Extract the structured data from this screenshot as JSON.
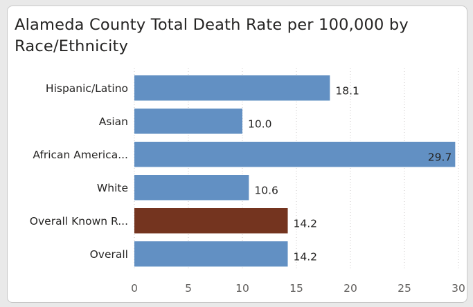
{
  "chart_data": {
    "type": "bar",
    "orientation": "horizontal",
    "title": "Alameda County Total Death Rate per 100,000 by Race/Ethnicity",
    "categories": [
      "Hispanic/Latino",
      "Asian",
      "African America...",
      "White",
      "Overall Known R...",
      "Overall"
    ],
    "values": [
      18.1,
      10.0,
      29.7,
      10.6,
      14.2,
      14.2
    ],
    "value_labels": [
      "18.1",
      "10.0",
      "29.7",
      "10.6",
      "14.2",
      "14.2"
    ],
    "bar_colors": [
      "#6290c3",
      "#6290c3",
      "#6290c3",
      "#6290c3",
      "#74341f",
      "#6290c3"
    ],
    "xlim": [
      0,
      30
    ],
    "x_ticks": [
      0,
      5,
      10,
      15,
      20,
      25,
      30
    ],
    "grid": true,
    "legend": "none"
  }
}
